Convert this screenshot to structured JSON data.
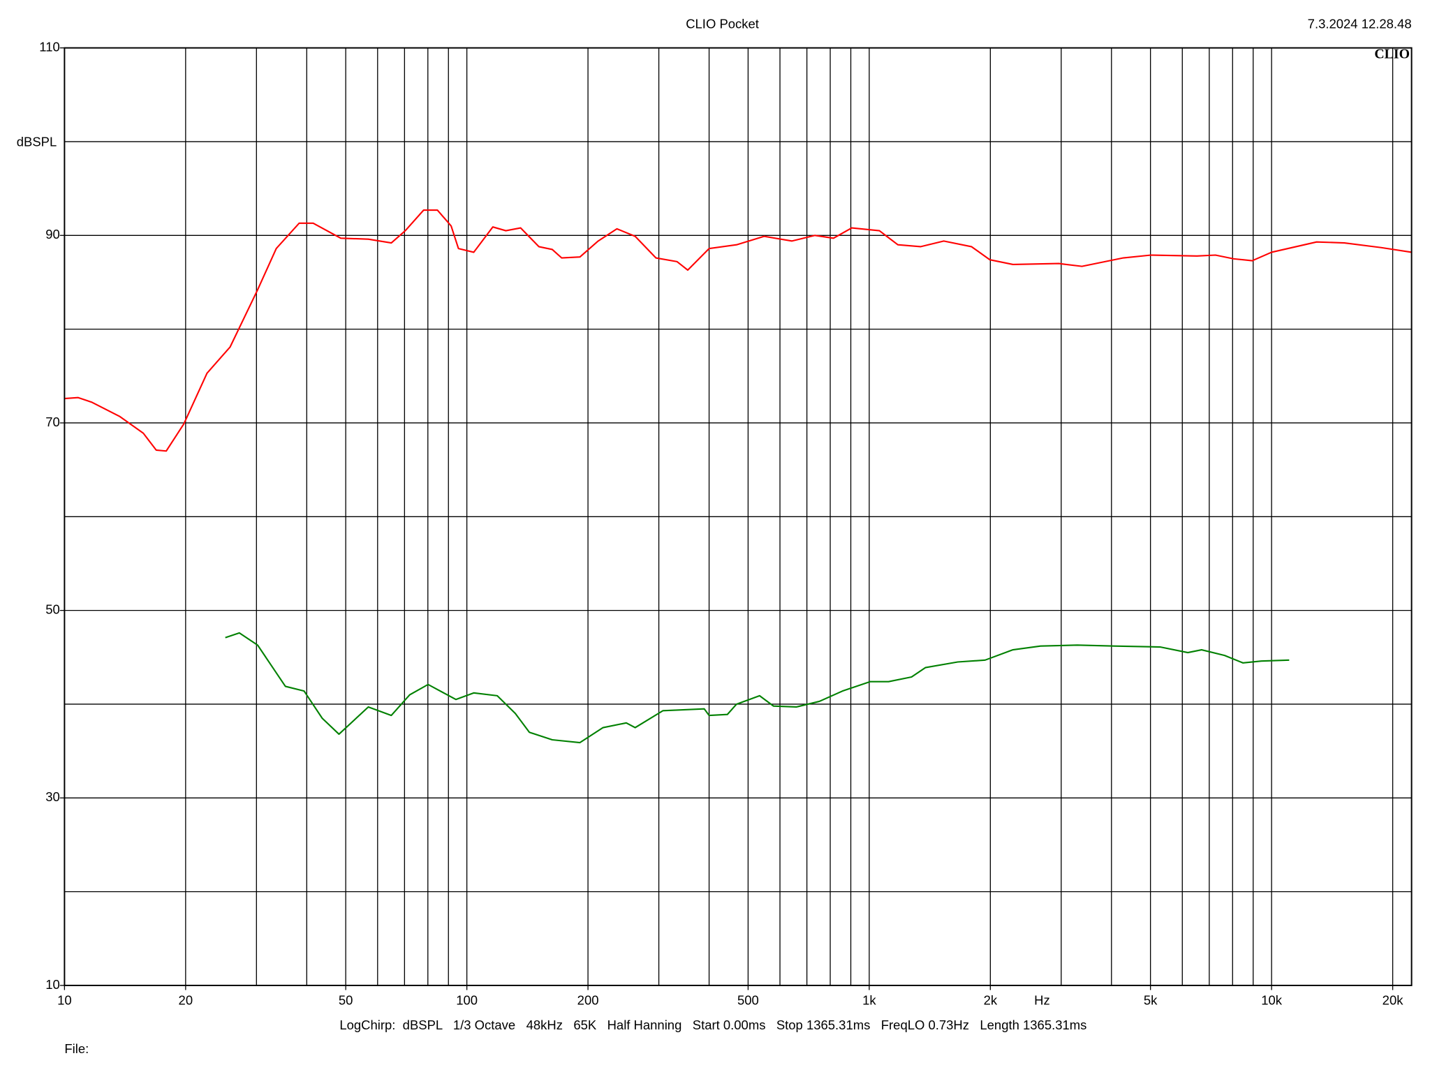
{
  "chart_data": {
    "type": "line",
    "title": "CLIO Pocket",
    "timestamp": "7.3.2024 12.28.48",
    "logo": "CLIO",
    "y_label": "dBSPL",
    "x_label": "Hz",
    "footer": "LogChirp:  dBSPL   1/3 Octave   48kHz   65K   Half Hanning   Start 0.00ms   Stop 1365.31ms   FreqLO 0.73Hz   Length 1365.31ms",
    "file_label": "File:",
    "x_scale": "log",
    "xlim": [
      10,
      22280
    ],
    "ylim": [
      10,
      110
    ],
    "xticks": [
      10,
      20,
      50,
      100,
      200,
      500,
      {
        "value": 1000,
        "label": "1k"
      },
      {
        "value": 2000,
        "label": "2k"
      },
      {
        "value": 5000,
        "label": "5k"
      },
      {
        "value": 10000,
        "label": "10k"
      },
      {
        "value": 20000,
        "label": "20k"
      }
    ],
    "xgrid": [
      20,
      30,
      40,
      50,
      60,
      70,
      80,
      90,
      100,
      200,
      300,
      400,
      500,
      600,
      700,
      800,
      900,
      1000,
      2000,
      3000,
      4000,
      5000,
      6000,
      7000,
      8000,
      9000,
      10000,
      20000
    ],
    "yticks": [
      10,
      30,
      50,
      70,
      90,
      110
    ],
    "ygrid": [
      20,
      30,
      40,
      50,
      60,
      70,
      80,
      90,
      100
    ],
    "grid": true,
    "series": [
      {
        "color": "#ff0000",
        "x": [
          10,
          10.8,
          11.7,
          13.7,
          15.7,
          16.9,
          17.9,
          19.8,
          22.6,
          25.8,
          30.2,
          33.6,
          38.3,
          41.5,
          48.6,
          56.9,
          64.9,
          70.3,
          78.1,
          84.5,
          91.4,
          95.3,
          104,
          116,
          125,
          136,
          151,
          163,
          172,
          191,
          212,
          236,
          262,
          295,
          333,
          354,
          400,
          468,
          548,
          642,
          733,
          815,
          905,
          1060,
          1178,
          1343,
          1532,
          1795,
          1995,
          2276,
          2960,
          3378,
          4281,
          5012,
          6524,
          7252,
          8054,
          8950,
          10000,
          12940,
          15170,
          18720,
          22280
        ],
        "values": [
          72.6,
          72.7,
          72.2,
          70.7,
          68.9,
          67.1,
          67.0,
          69.9,
          75.3,
          78.1,
          84.2,
          88.6,
          91.3,
          91.3,
          89.7,
          89.6,
          89.2,
          90.5,
          92.7,
          92.7,
          91.0,
          88.6,
          88.2,
          90.9,
          90.5,
          90.8,
          88.8,
          88.5,
          87.6,
          87.7,
          89.4,
          90.7,
          89.9,
          87.6,
          87.2,
          86.3,
          88.6,
          89.0,
          89.9,
          89.4,
          90.0,
          89.7,
          90.8,
          90.5,
          89.0,
          88.8,
          89.4,
          88.8,
          87.4,
          86.9,
          87.0,
          86.7,
          87.6,
          87.9,
          87.8,
          87.9,
          87.5,
          87.3,
          88.2,
          89.3,
          89.2,
          88.7,
          88.2
        ]
      },
      {
        "color": "#008000",
        "x": [
          25.1,
          27.2,
          30.2,
          35.4,
          39.4,
          43.7,
          48.1,
          56.9,
          64.9,
          72.1,
          80.1,
          93.9,
          104,
          119,
          132,
          143,
          163,
          191,
          218,
          249,
          262,
          307,
          389,
          400,
          444,
          468,
          534,
          578,
          659,
          752,
          858,
          1005,
          1117,
          1274,
          1379,
          1659,
          1941,
          2276,
          2665,
          3289,
          4061,
          5284,
          6193,
          6699,
          7640,
          8492,
          9430,
          11060
        ],
        "values": [
          47.1,
          47.6,
          46.3,
          41.9,
          41.4,
          38.5,
          36.8,
          39.7,
          38.8,
          41.0,
          42.1,
          40.5,
          41.2,
          40.9,
          39.0,
          37.0,
          36.2,
          35.9,
          37.5,
          38.0,
          37.5,
          39.3,
          39.5,
          38.8,
          38.9,
          40.0,
          40.9,
          39.8,
          39.7,
          40.3,
          41.4,
          42.4,
          42.4,
          42.9,
          43.9,
          44.5,
          44.7,
          45.8,
          46.2,
          46.3,
          46.2,
          46.1,
          45.5,
          45.8,
          45.2,
          44.4,
          44.6,
          44.7
        ]
      }
    ]
  }
}
